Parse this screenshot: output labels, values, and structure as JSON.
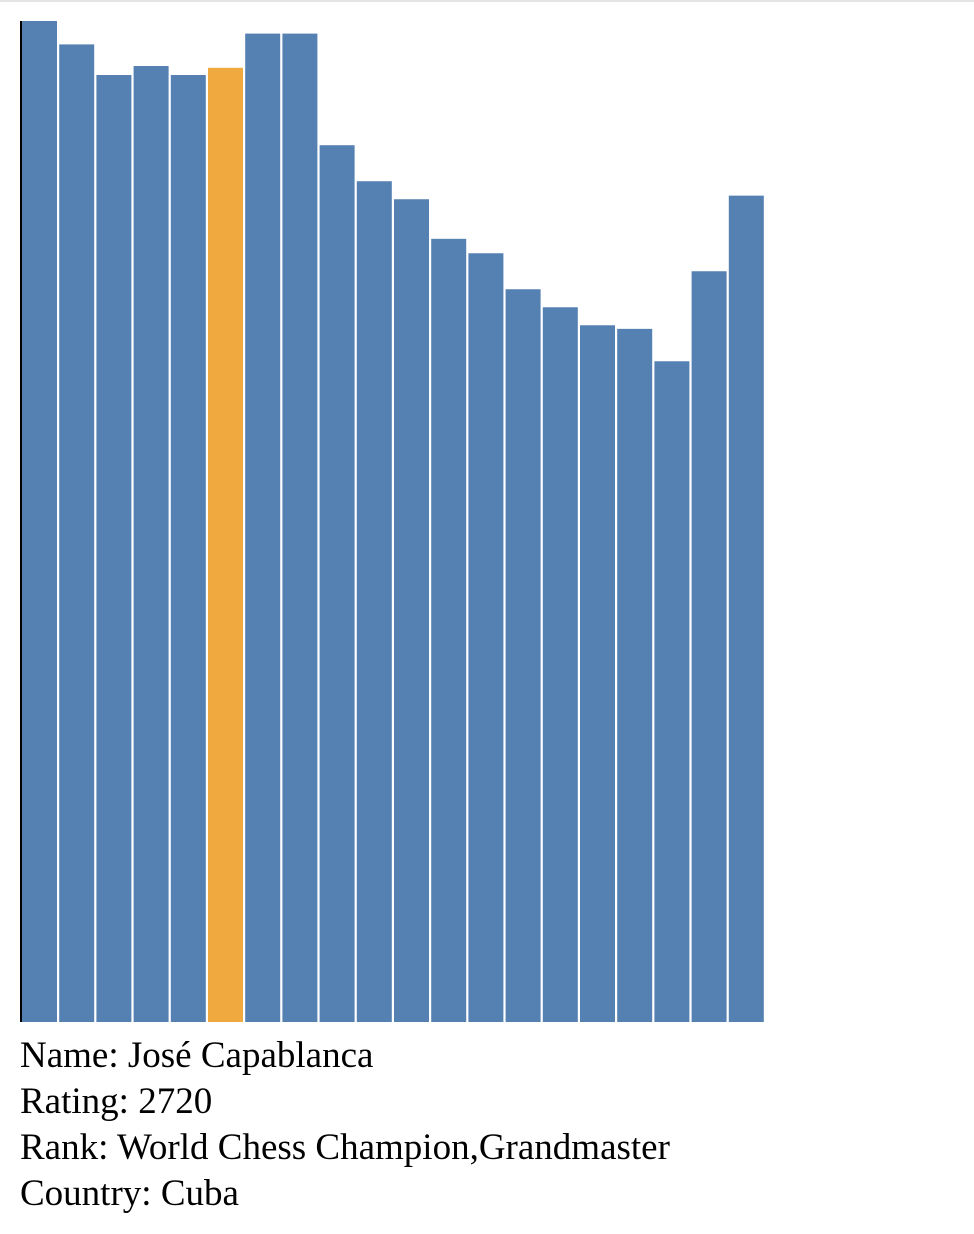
{
  "colors": {
    "bar": "#5580b2",
    "highlight": "#f0a93f",
    "axis": "#000000",
    "background": "#ffffff"
  },
  "chart_data": {
    "type": "bar",
    "title": "",
    "xlabel": "",
    "ylabel": "",
    "ylim": [
      0,
      2780
    ],
    "grid": false,
    "legend": "none",
    "values": [
      2780,
      2715,
      2630,
      2655,
      2630,
      2650,
      2745,
      2745,
      2435,
      2335,
      2285,
      2175,
      2135,
      2035,
      1985,
      1935,
      1925,
      1835,
      2085,
      2295
    ],
    "highlight_index": 5
  },
  "info": {
    "name_label": "Name: ",
    "name": "José Capablanca",
    "rating_label": "Rating: ",
    "rating": "2720",
    "rank_label": "Rank: ",
    "rank": "World Chess Champion,Grandmaster",
    "country_label": "Country: ",
    "country": "Cuba"
  }
}
